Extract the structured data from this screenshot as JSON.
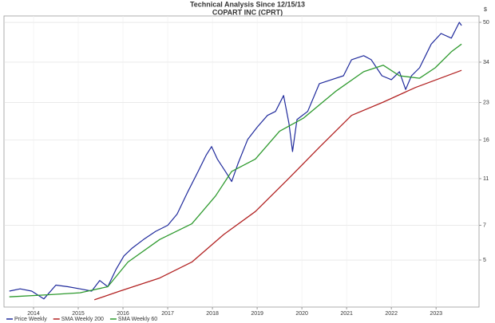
{
  "chart_data": {
    "type": "line",
    "title": "Technical Analysis Since 12/15/13",
    "subtitle": "COPART INC (CPRT)",
    "y_axis_label": "$",
    "log_scale": true,
    "grid": true,
    "legend": "bottom-left",
    "xlim": [
      2013.84,
      2024.46
    ],
    "xticks": [
      {
        "value": 2014.5,
        "label": "2014"
      },
      {
        "value": 2015.5,
        "label": "2015"
      },
      {
        "value": 2016.5,
        "label": "2016"
      },
      {
        "value": 2017.5,
        "label": "2017"
      },
      {
        "value": 2018.5,
        "label": "2018"
      },
      {
        "value": 2019.5,
        "label": "2019"
      },
      {
        "value": 2020.5,
        "label": "2020"
      },
      {
        "value": 2021.5,
        "label": "2021"
      },
      {
        "value": 2022.5,
        "label": "2022"
      },
      {
        "value": 2023.5,
        "label": "2023"
      }
    ],
    "ylim": [
      3.17,
      53.2
    ],
    "yticks": [
      5,
      7,
      11,
      16,
      23,
      34,
      50
    ],
    "series": [
      {
        "name": "Price Weekly",
        "color": "#1f2a9c",
        "x": [
          2013.96,
          2014.2,
          2014.46,
          2014.73,
          2015.0,
          2015.27,
          2015.54,
          2015.8,
          2015.98,
          2016.16,
          2016.34,
          2016.52,
          2016.7,
          2016.96,
          2017.23,
          2017.5,
          2017.71,
          2017.95,
          2018.18,
          2018.36,
          2018.48,
          2018.61,
          2018.79,
          2018.93,
          2019.07,
          2019.29,
          2019.5,
          2019.73,
          2019.91,
          2020.09,
          2020.21,
          2020.29,
          2020.39,
          2020.63,
          2020.89,
          2021.16,
          2021.43,
          2021.61,
          2021.88,
          2022.05,
          2022.29,
          2022.5,
          2022.68,
          2022.82,
          2022.95,
          2023.13,
          2023.39,
          2023.61,
          2023.84,
          2024.02,
          2024.07
        ],
        "values": [
          3.7,
          3.78,
          3.7,
          3.43,
          3.92,
          3.86,
          3.78,
          3.7,
          4.1,
          3.86,
          4.55,
          5.2,
          5.6,
          6.1,
          6.6,
          7.0,
          7.8,
          9.7,
          11.8,
          13.8,
          15.0,
          13.3,
          11.8,
          10.7,
          12.7,
          16.1,
          18.1,
          20.3,
          21.1,
          24.6,
          18.8,
          14.3,
          19.5,
          21.1,
          27.6,
          28.7,
          29.8,
          34.8,
          36.2,
          34.8,
          29.8,
          28.7,
          31.0,
          26.1,
          29.8,
          32.2,
          40.5,
          44.9,
          42.9,
          50,
          48.5
        ]
      },
      {
        "name": "SMA Weekly 200",
        "color": "#b22222",
        "x": [
          2015.86,
          2016.43,
          2017.32,
          2018.04,
          2018.75,
          2019.46,
          2020.18,
          2020.89,
          2021.61,
          2022.32,
          2023.04,
          2024.07
        ],
        "values": [
          3.4,
          3.7,
          4.2,
          4.9,
          6.4,
          8.0,
          10.9,
          14.9,
          20.3,
          23.1,
          26.6,
          31.4
        ]
      },
      {
        "name": "SMA Weekly 60",
        "color": "#2e9a2e",
        "x": [
          2013.96,
          2014.82,
          2015.54,
          2016.16,
          2016.61,
          2017.32,
          2018.04,
          2018.57,
          2018.93,
          2019.46,
          2020.0,
          2020.54,
          2021.25,
          2021.88,
          2022.32,
          2022.68,
          2023.13,
          2023.48,
          2023.84,
          2024.07
        ],
        "values": [
          3.5,
          3.57,
          3.64,
          3.86,
          4.9,
          6.1,
          7.1,
          9.3,
          11.8,
          13.3,
          17.4,
          19.8,
          25.6,
          31.0,
          33.0,
          29.8,
          29.1,
          32.2,
          37.6,
          40.5
        ]
      }
    ]
  }
}
